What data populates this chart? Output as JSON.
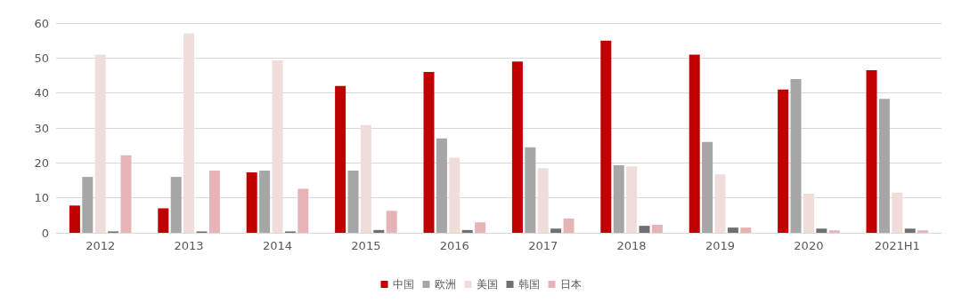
{
  "chart_data": {
    "type": "bar",
    "categories": [
      "2012",
      "2013",
      "2014",
      "2015",
      "2016",
      "2017",
      "2018",
      "2019",
      "2020",
      "2021H1"
    ],
    "series": [
      {
        "name": "中国",
        "color": "#c00000",
        "values": [
          7.8,
          7,
          17.3,
          42,
          46,
          49,
          55,
          51,
          41,
          46.5
        ]
      },
      {
        "name": "欧洲",
        "color": "#a6a6a6",
        "values": [
          16,
          16,
          17.8,
          17.8,
          27,
          24.5,
          19.3,
          26,
          44,
          38.3
        ]
      },
      {
        "name": "美国",
        "color": "#f0dcd9",
        "values": [
          51,
          57,
          49.3,
          30.8,
          21.5,
          18.5,
          19,
          16.7,
          11.2,
          11.5
        ]
      },
      {
        "name": "韩国",
        "color": "#707070",
        "values": [
          0.4,
          0.4,
          0.4,
          0.8,
          0.8,
          1.2,
          2,
          1.5,
          1.2,
          1.2
        ]
      },
      {
        "name": "日本",
        "color": "#e6b4b6",
        "values": [
          22.2,
          17.8,
          12.6,
          6.3,
          3,
          4.1,
          2.3,
          1.5,
          0.7,
          0.7
        ]
      }
    ],
    "ylim": [
      0,
      60
    ],
    "yticks": [
      0,
      10,
      20,
      30,
      40,
      50,
      60
    ],
    "grid": "y",
    "legend": "bottom"
  }
}
